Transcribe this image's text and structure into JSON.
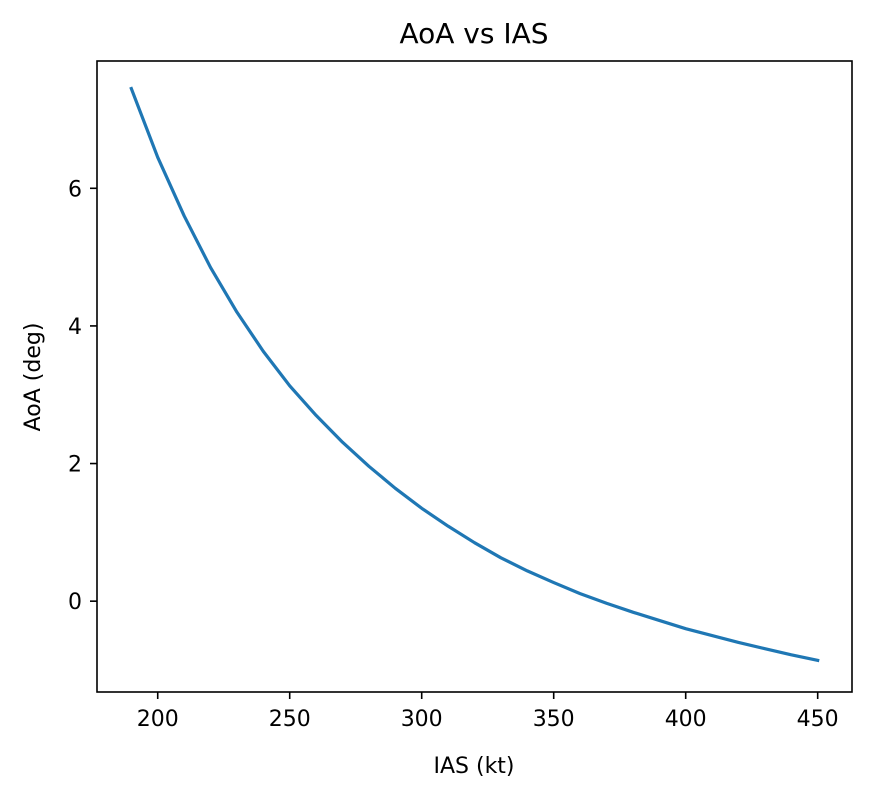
{
  "chart_data": {
    "type": "line",
    "title": "AoA vs IAS",
    "xlabel": "IAS (kt)",
    "ylabel": "AoA (deg)",
    "xlim": [
      177,
      463
    ],
    "ylim": [
      -1.32,
      7.85
    ],
    "xticks": [
      200,
      250,
      300,
      350,
      400,
      450
    ],
    "yticks": [
      0,
      2,
      4,
      6
    ],
    "grid": false,
    "series": [
      {
        "color": "#1f77b4",
        "x": [
          190,
          200,
          210,
          220,
          230,
          240,
          250,
          260,
          270,
          280,
          290,
          300,
          310,
          320,
          330,
          340,
          350,
          360,
          370,
          380,
          390,
          400,
          410,
          420,
          430,
          440,
          450
        ],
        "y": [
          7.45,
          6.45,
          5.6,
          4.85,
          4.2,
          3.63,
          3.13,
          2.7,
          2.31,
          1.96,
          1.64,
          1.35,
          1.09,
          0.85,
          0.63,
          0.44,
          0.27,
          0.11,
          -0.03,
          -0.16,
          -0.28,
          -0.4,
          -0.5,
          -0.6,
          -0.69,
          -0.78,
          -0.86
        ]
      }
    ]
  }
}
